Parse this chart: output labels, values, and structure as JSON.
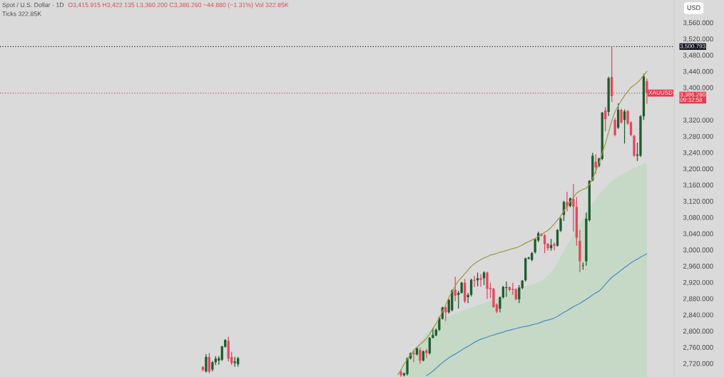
{
  "chart_data": {
    "type": "candlestick",
    "title": "Spot / U.S. Dollar · 1D",
    "subtitle": "Ticks 322.85K",
    "ylabel": "USD",
    "annotations": [
      "O3,415.915 H3,422.135 L3,360.200 C3,386.260 −44.880 (−1.31%) Vol 322.85K",
      {
        "text": "XAUUSD",
        "y": 3386.26
      }
    ],
    "categories": [
      null,
      null,
      null,
      null,
      null,
      null,
      null,
      null,
      null,
      null,
      null,
      null,
      null,
      null,
      null,
      null,
      null,
      null,
      null,
      null,
      null,
      null,
      null,
      null,
      null,
      null,
      null,
      null,
      null,
      null,
      null,
      null,
      null,
      null,
      null,
      null,
      null,
      null,
      null,
      null,
      null,
      null,
      null,
      null,
      null,
      null,
      null,
      null,
      null,
      null,
      null,
      null,
      null,
      null,
      null,
      null,
      null,
      null,
      null,
      null,
      null,
      null,
      null,
      null,
      null,
      null,
      null,
      null,
      null,
      null,
      null,
      null,
      null,
      null,
      null,
      null,
      null,
      null,
      null,
      null,
      null,
      null,
      null,
      null,
      null,
      null,
      null,
      null,
      null,
      null,
      null,
      null,
      null,
      null,
      null,
      null,
      null,
      null,
      null,
      null,
      null,
      null,
      null,
      null,
      null,
      null,
      null,
      null,
      null,
      null,
      null,
      null,
      null,
      null,
      null,
      null,
      null,
      null,
      null,
      null,
      null,
      null,
      null,
      null,
      null,
      null,
      null,
      null,
      null,
      null,
      null,
      null,
      null,
      null,
      null,
      null,
      null,
      null,
      null,
      null,
      null,
      null,
      null,
      null,
      null,
      null,
      null,
      null,
      null,
      null,
      null,
      null,
      null,
      null,
      null,
      null,
      null,
      null,
      null,
      null,
      null,
      null,
      null,
      null,
      null,
      null,
      null,
      null,
      null,
      null,
      null,
      null,
      null,
      null,
      null,
      null,
      null,
      null,
      null,
      null,
      null,
      null,
      null,
      null,
      null,
      null,
      null,
      null,
      null,
      null,
      null,
      null,
      null,
      null,
      null,
      null,
      null,
      null,
      null,
      null,
      null,
      null,
      null,
      null,
      null,
      null,
      null,
      null,
      null,
      null,
      null
    ],
    "ohlc": [
      null,
      null,
      null,
      null,
      null,
      null,
      null,
      null,
      null,
      null,
      null,
      null,
      null,
      null,
      null,
      null,
      null,
      null,
      null,
      null,
      null,
      null,
      null,
      null,
      null,
      null,
      null,
      null,
      null,
      null,
      null,
      null,
      null,
      null,
      null,
      null,
      null,
      null,
      null,
      null,
      null,
      null,
      null,
      null,
      null,
      null,
      null,
      null,
      null,
      null,
      null,
      null,
      null,
      null,
      null,
      null,
      null,
      null,
      null,
      null,
      null,
      null,
      null,
      [
        2711,
        2714,
        2700,
        2704
      ],
      [
        2700,
        2743,
        2698,
        2736
      ],
      [
        2736,
        2746,
        2696,
        2700
      ],
      [
        2705,
        2726,
        2700,
        2723
      ],
      [
        2723,
        2738,
        2716,
        2732
      ],
      [
        2727,
        2738,
        2717,
        2733
      ],
      [
        2729,
        2764,
        2726,
        2762
      ],
      [
        2761,
        2780,
        2759,
        2778
      ],
      [
        2776,
        2786,
        2725,
        2732
      ],
      [
        2736,
        2749,
        2716,
        2721
      ],
      [
        2721,
        2736,
        2712,
        2725
      ],
      [
        2718,
        2736,
        2712,
        2733
      ],
      null,
      null,
      null,
      null,
      null,
      null,
      null,
      null,
      null,
      null,
      null,
      null,
      null,
      null,
      null,
      null,
      null,
      null,
      null,
      null,
      null,
      null,
      null,
      null,
      null,
      null,
      null,
      null,
      null,
      null,
      null,
      null,
      null,
      null,
      null,
      null,
      null,
      null,
      null,
      null,
      null,
      null,
      null,
      null,
      null,
      null,
      null,
      null,
      null,
      null,
      [
        2700,
        2705,
        2687,
        2691
      ],
      [
        2691,
        2697,
        2688,
        2696
      ],
      [
        2694,
        2735,
        2690,
        2733
      ],
      [
        2732,
        2747,
        2730,
        2745
      ],
      [
        2746,
        2752,
        2723,
        2743
      ],
      [
        2742,
        2760,
        2740,
        2758
      ],
      [
        2753,
        2759,
        2719,
        2727
      ],
      [
        2727,
        2752,
        2725,
        2750
      ],
      [
        2752,
        2755,
        2733,
        2746
      ],
      [
        2745,
        2785,
        2742,
        2783
      ],
      [
        2783,
        2807,
        2782,
        2790
      ],
      [
        2789,
        2806,
        2787,
        2803
      ],
      [
        2803,
        2835,
        2800,
        2832
      ],
      [
        2830,
        2860,
        2828,
        2858
      ],
      [
        2858,
        2861,
        2825,
        2846
      ],
      [
        2846,
        2879,
        2843,
        2877
      ],
      [
        2851,
        2902,
        2848,
        2900
      ],
      [
        2902,
        2934,
        2873,
        2887
      ],
      [
        2889,
        2899,
        2855,
        2894
      ],
      [
        2894,
        2921,
        2892,
        2919
      ],
      [
        2919,
        2928,
        2869,
        2873
      ],
      [
        2883,
        2894,
        2869,
        2889
      ],
      [
        2889,
        2929,
        2885,
        2926
      ],
      [
        2926,
        2936,
        2908,
        2924
      ],
      [
        2925,
        2944,
        2910,
        2930
      ],
      [
        2930,
        2940,
        2909,
        2926
      ],
      [
        2930,
        2947,
        2913,
        2944
      ],
      [
        2944,
        2946,
        2879,
        2904
      ],
      [
        2906,
        2919,
        2881,
        2903
      ],
      [
        2904,
        2906,
        2857,
        2859
      ],
      [
        2865,
        2868,
        2844,
        2848
      ],
      [
        2855,
        2885,
        2846,
        2883
      ],
      [
        2883,
        2911,
        2880,
        2909
      ],
      [
        2906,
        2922,
        2884,
        2908
      ],
      [
        2908,
        2910,
        2897,
        2901
      ],
      [
        2904,
        2919,
        2889,
        2901
      ],
      [
        2903,
        2905,
        2876,
        2878
      ],
      [
        2878,
        2913,
        2869,
        2907
      ],
      [
        2906,
        2926,
        2903,
        2924
      ],
      [
        2925,
        2981,
        2922,
        2979
      ],
      [
        2978,
        2983,
        2976,
        2981
      ],
      [
        2975,
        2995,
        2972,
        2992
      ],
      [
        2994,
        3028,
        2991,
        3026
      ],
      [
        3023,
        3045,
        3019,
        3041
      ],
      [
        3039,
        3041,
        3033,
        3035
      ],
      [
        3036,
        3039,
        2992,
        3014
      ],
      [
        3015,
        3017,
        2998,
        3004
      ],
      [
        3004,
        3027,
        2998,
        3012
      ],
      [
        3014,
        3018,
        2999,
        3010
      ],
      [
        3010,
        3051,
        3008,
        3049
      ],
      [
        3047,
        3080,
        3044,
        3077
      ],
      [
        3086,
        3121,
        3071,
        3118
      ],
      [
        3118,
        3143,
        3095,
        3106
      ],
      [
        3108,
        3129,
        3105,
        3127
      ],
      [
        3125,
        3162,
        3045,
        3106
      ],
      [
        3106,
        3130,
        3010,
        3030
      ],
      [
        3022,
        3049,
        2945,
        2972
      ],
      [
        2961,
        2969,
        2951,
        2962
      ],
      [
        2972,
        3092,
        2961,
        3077
      ],
      [
        3073,
        3172,
        3070,
        3170
      ],
      [
        3171,
        3239,
        3169,
        3232
      ],
      [
        3217,
        3236,
        3188,
        3203
      ],
      [
        3207,
        3227,
        3204,
        3225
      ],
      [
        3224,
        3340,
        3221,
        3338
      ],
      [
        3344,
        3352,
        3292,
        3322
      ],
      [
        3340,
        3427,
        3330,
        3423
      ],
      [
        3426,
        3500.793,
        3364,
        3379
      ],
      [
        3320,
        3325,
        3280,
        3283
      ],
      [
        3301,
        3361,
        3298,
        3345
      ],
      [
        3345,
        3348,
        3311,
        3314
      ],
      [
        3320,
        3346,
        3262,
        3341
      ],
      [
        3342,
        3345,
        3308,
        3311
      ],
      [
        3314,
        3317,
        3280,
        3283
      ],
      [
        3281,
        3283,
        3229,
        3232
      ],
      [
        3232,
        3264,
        3219,
        3235
      ],
      [
        3232,
        3332,
        3229,
        3329
      ],
      [
        3329,
        3434,
        3320,
        3428
      ],
      [
        3415.915,
        3422.135,
        3360.2,
        3386.26
      ],
      null,
      null,
      null,
      null,
      null,
      null,
      null,
      null
    ],
    "series": [
      {
        "type": "area",
        "color": "#c6d9c6",
        "values": [
          null,
          null,
          null,
          null,
          null,
          null,
          null,
          null,
          null,
          null,
          null,
          null,
          null,
          null,
          null,
          null,
          null,
          null,
          null,
          null,
          null,
          null,
          null,
          null,
          null,
          null,
          null,
          null,
          null,
          null,
          null,
          null,
          null,
          null,
          null,
          null,
          null,
          null,
          null,
          null,
          null,
          null,
          null,
          null,
          null,
          null,
          null,
          null,
          null,
          null,
          null,
          null,
          null,
          null,
          null,
          null,
          null,
          null,
          null,
          null,
          null,
          null,
          null,
          null,
          null,
          null,
          null,
          null,
          null,
          null,
          null,
          null,
          null,
          null,
          null,
          null,
          null,
          null,
          null,
          null,
          null,
          null,
          null,
          null,
          null,
          null,
          null,
          null,
          null,
          null,
          null,
          null,
          null,
          null,
          null,
          null,
          null,
          null,
          null,
          null,
          null,
          null,
          null,
          null,
          null,
          null,
          null,
          null,
          null,
          null,
          null,
          null,
          null,
          null,
          null,
          null,
          null,
          null,
          null,
          null,
          null,
          null,
          null,
          null,
          null,
          2690,
          2706,
          2723,
          2739,
          2753,
          2764,
          2774,
          2783,
          2794,
          2802,
          2810,
          2817,
          2822,
          2827,
          2833,
          2836,
          2839,
          2843,
          2846,
          2849,
          2852,
          2855,
          2858,
          2860,
          2863,
          2866,
          2868,
          2871,
          2874,
          2878,
          2881,
          2885,
          2889,
          2892,
          2896,
          2898,
          2902,
          2904,
          2908,
          2911,
          2912,
          2915,
          2917,
          2920,
          2925,
          2929,
          2936,
          2945,
          2955,
          2969,
          2983,
          2997,
          3012,
          3024,
          3038,
          3052,
          3066,
          3078,
          3091,
          3103,
          3115,
          3126,
          3136,
          3145,
          3154,
          3163,
          3170,
          3175,
          3180,
          3185,
          3189,
          3193,
          3198,
          3201,
          3205,
          3208,
          3212,
          3213,
          null,
          null,
          null,
          null,
          null,
          null,
          null,
          null
        ]
      },
      {
        "type": "line",
        "color": "#4a8ec2",
        "values": [
          null,
          null,
          null,
          null,
          null,
          null,
          null,
          null,
          null,
          null,
          null,
          null,
          null,
          null,
          null,
          null,
          null,
          null,
          null,
          null,
          null,
          null,
          null,
          null,
          null,
          null,
          null,
          null,
          null,
          null,
          null,
          null,
          null,
          null,
          null,
          null,
          null,
          null,
          null,
          null,
          null,
          null,
          null,
          null,
          null,
          null,
          null,
          null,
          null,
          null,
          null,
          null,
          null,
          null,
          null,
          null,
          null,
          null,
          null,
          null,
          null,
          null,
          null,
          null,
          null,
          null,
          null,
          null,
          null,
          null,
          null,
          null,
          null,
          null,
          null,
          null,
          null,
          null,
          null,
          null,
          null,
          null,
          null,
          null,
          null,
          null,
          null,
          null,
          null,
          null,
          null,
          null,
          null,
          null,
          null,
          null,
          null,
          null,
          null,
          null,
          null,
          null,
          null,
          null,
          null,
          null,
          null,
          null,
          null,
          null,
          null,
          null,
          null,
          null,
          null,
          null,
          null,
          null,
          null,
          null,
          null,
          null,
          null,
          null,
          null,
          null,
          null,
          null,
          null,
          null,
          null,
          null,
          null,
          2690,
          2695,
          2701,
          2708,
          2715,
          2722,
          2728,
          2734,
          2739,
          2743,
          2748,
          2753,
          2758,
          2762,
          2767,
          2772,
          2776,
          2780,
          2782,
          2785,
          2788,
          2790,
          2793,
          2795,
          2797,
          2800,
          2802,
          2804,
          2806,
          2808,
          2810,
          2811,
          2813,
          2815,
          2817,
          2819,
          2822,
          2825,
          2827,
          2829,
          2832,
          2836,
          2841,
          2846,
          2850,
          2855,
          2860,
          2864,
          2868,
          2873,
          2878,
          2883,
          2889,
          2894,
          2898,
          2906,
          2915,
          2924,
          2932,
          2938,
          2944,
          2950,
          2956,
          2962,
          2968,
          2973,
          2977,
          2982,
          2986,
          2990,
          null,
          null,
          null,
          null,
          null,
          null,
          null,
          null
        ]
      },
      {
        "type": "line",
        "color": "#a09a45",
        "values": [
          null,
          null,
          null,
          null,
          null,
          null,
          null,
          null,
          null,
          null,
          null,
          null,
          null,
          null,
          null,
          null,
          null,
          null,
          null,
          null,
          null,
          null,
          null,
          null,
          null,
          null,
          null,
          null,
          null,
          null,
          null,
          null,
          null,
          null,
          null,
          null,
          null,
          null,
          null,
          null,
          null,
          null,
          null,
          null,
          null,
          null,
          null,
          null,
          null,
          null,
          null,
          null,
          null,
          null,
          null,
          null,
          null,
          null,
          null,
          null,
          null,
          null,
          null,
          null,
          null,
          null,
          null,
          null,
          null,
          null,
          null,
          null,
          null,
          null,
          null,
          null,
          null,
          null,
          null,
          null,
          null,
          null,
          null,
          null,
          null,
          null,
          null,
          null,
          null,
          null,
          null,
          null,
          null,
          null,
          null,
          null,
          null,
          null,
          null,
          null,
          null,
          null,
          null,
          null,
          null,
          null,
          null,
          null,
          null,
          null,
          null,
          null,
          null,
          null,
          null,
          null,
          null,
          null,
          null,
          null,
          null,
          null,
          null,
          null,
          2692,
          2704,
          2718,
          2731,
          2741,
          2752,
          2760,
          2767,
          2774,
          2781,
          2792,
          2806,
          2818,
          2832,
          2848,
          2864,
          2882,
          2897,
          2911,
          2924,
          2932,
          2941,
          2950,
          2959,
          2966,
          2971,
          2976,
          2980,
          2983,
          2987,
          2989,
          2991,
          2994,
          2996,
          2998,
          3001,
          3003,
          3005,
          3008,
          3012,
          3017,
          3020,
          3024,
          3028,
          3033,
          3038,
          3043,
          3048,
          3055,
          3064,
          3073,
          3083,
          3096,
          3108,
          3119,
          3129,
          3140,
          3145,
          3149,
          3152,
          3161,
          3175,
          3194,
          3214,
          3238,
          3262,
          3290,
          3318,
          3340,
          3355,
          3368,
          3380,
          3390,
          3400,
          3406,
          3412,
          3420,
          3430,
          3440,
          null,
          null,
          null,
          null,
          null,
          null,
          null,
          null
        ]
      }
    ],
    "ylim": [
      2686.6,
      3615.7
    ],
    "yticks": [
      {
        "value": 2720,
        "label": "2,720.000"
      },
      {
        "value": 2760,
        "label": "2,760.000"
      },
      {
        "value": 2800,
        "label": "2,800.000"
      },
      {
        "value": 2840,
        "label": "2,840.000"
      },
      {
        "value": 2880,
        "label": "2,880.000"
      },
      {
        "value": 2920,
        "label": "2,920.000"
      },
      {
        "value": 2960,
        "label": "2,960.000"
      },
      {
        "value": 3000,
        "label": "3,000.000"
      },
      {
        "value": 3040,
        "label": "3,040.000"
      },
      {
        "value": 3080,
        "label": "3,080.000"
      },
      {
        "value": 3120,
        "label": "3,120.000"
      },
      {
        "value": 3160,
        "label": "3,160.000"
      },
      {
        "value": 3200,
        "label": "3,200.000"
      },
      {
        "value": 3240,
        "label": "3,240.000"
      },
      {
        "value": 3280,
        "label": "3,280.000"
      },
      {
        "value": 3320,
        "label": "3,320.000"
      },
      {
        "value": 3400,
        "label": "3,400.000"
      },
      {
        "value": 3440,
        "label": "3,440.000"
      },
      {
        "value": 3480,
        "label": "3,480.000"
      },
      {
        "value": 3520,
        "label": "3,520.000"
      },
      {
        "value": 3560,
        "label": "3,560.000"
      }
    ],
    "ref_lines": [
      {
        "axis": "y",
        "value": 3500.793,
        "label": "3,500.793",
        "color": "#131722",
        "line_style": "dotted"
      },
      {
        "axis": "y",
        "value": 3386.26,
        "label": "3,386.260\n09:32:58",
        "color": "#e8384f",
        "line_style": "dotted"
      }
    ],
    "tick_labels": "y"
  }
}
